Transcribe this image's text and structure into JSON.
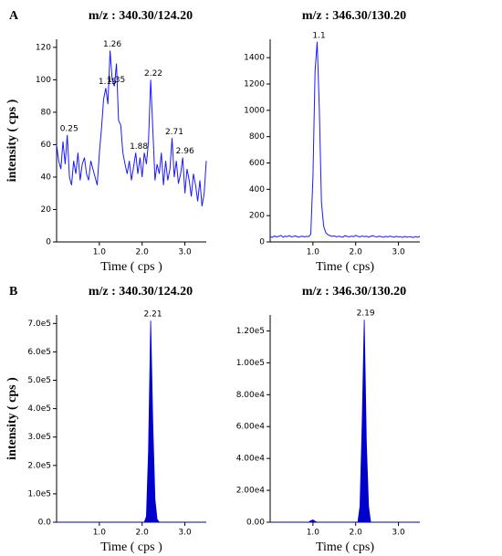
{
  "chart_data": [
    {
      "type": "line",
      "panel": "A",
      "title": "m/z : 340.30/124.20",
      "xlabel": "Time ( cps )",
      "ylabel": "intensity ( cps )",
      "color": "#1a1aff",
      "x": [
        0,
        0.05,
        0.1,
        0.15,
        0.2,
        0.25,
        0.3,
        0.35,
        0.4,
        0.45,
        0.5,
        0.55,
        0.6,
        0.65,
        0.7,
        0.75,
        0.8,
        0.85,
        0.9,
        0.95,
        1.0,
        1.05,
        1.1,
        1.15,
        1.2,
        1.25,
        1.3,
        1.35,
        1.4,
        1.45,
        1.5,
        1.55,
        1.6,
        1.65,
        1.7,
        1.75,
        1.8,
        1.85,
        1.9,
        1.95,
        2.0,
        2.05,
        2.1,
        2.15,
        2.2,
        2.25,
        2.3,
        2.35,
        2.4,
        2.45,
        2.5,
        2.55,
        2.6,
        2.65,
        2.7,
        2.75,
        2.8,
        2.85,
        2.9,
        2.95,
        3.0,
        3.05,
        3.1,
        3.15,
        3.2,
        3.25,
        3.3,
        3.35,
        3.4,
        3.45,
        3.5
      ],
      "values": [
        60,
        50,
        45,
        62,
        48,
        66,
        40,
        35,
        50,
        42,
        55,
        38,
        48,
        52,
        42,
        38,
        50,
        45,
        40,
        35,
        55,
        70,
        88,
        95,
        85,
        118,
        100,
        96,
        110,
        75,
        72,
        55,
        48,
        42,
        50,
        38,
        46,
        55,
        42,
        52,
        40,
        55,
        48,
        62,
        100,
        70,
        38,
        48,
        42,
        55,
        35,
        50,
        38,
        45,
        64,
        40,
        50,
        36,
        42,
        52,
        30,
        45,
        38,
        28,
        42,
        35,
        25,
        38,
        22,
        30,
        50
      ],
      "peaks": [
        {
          "x": 0.25,
          "y": 66
        },
        {
          "x": 1.15,
          "y": 95
        },
        {
          "x": 1.26,
          "y": 118
        },
        {
          "x": 1.35,
          "y": 96
        },
        {
          "x": 1.88,
          "y": 55
        },
        {
          "x": 2.22,
          "y": 100
        },
        {
          "x": 2.71,
          "y": 64
        },
        {
          "x": 2.96,
          "y": 52
        }
      ],
      "xlim": [
        0,
        3.5
      ],
      "xticks": [
        {
          "value": 1,
          "label": "1.0"
        },
        {
          "value": 2,
          "label": "2.0"
        },
        {
          "value": 3,
          "label": "3.0"
        }
      ],
      "ylim": [
        0,
        125
      ],
      "yticks": [
        0,
        20,
        40,
        60,
        80,
        100,
        120
      ]
    },
    {
      "type": "line",
      "title": "m/z : 346.30/130.20",
      "xlabel": "Time ( cps)",
      "color": "#1a1aff",
      "x": [
        0,
        0.05,
        0.1,
        0.15,
        0.2,
        0.25,
        0.3,
        0.35,
        0.4,
        0.45,
        0.5,
        0.55,
        0.6,
        0.65,
        0.7,
        0.75,
        0.8,
        0.85,
        0.9,
        0.95,
        1.0,
        1.05,
        1.1,
        1.15,
        1.2,
        1.25,
        1.3,
        1.35,
        1.4,
        1.45,
        1.5,
        1.55,
        1.6,
        1.65,
        1.7,
        1.75,
        1.8,
        1.85,
        1.9,
        1.95,
        2.0,
        2.05,
        2.1,
        2.15,
        2.2,
        2.25,
        2.3,
        2.35,
        2.4,
        2.45,
        2.5,
        2.55,
        2.6,
        2.65,
        2.7,
        2.75,
        2.8,
        2.85,
        2.9,
        2.95,
        3.0,
        3.05,
        3.1,
        3.15,
        3.2,
        3.25,
        3.3,
        3.35,
        3.4,
        3.45,
        3.5
      ],
      "values": [
        40,
        35,
        45,
        38,
        42,
        50,
        36,
        44,
        40,
        48,
        38,
        42,
        46,
        36,
        40,
        44,
        38,
        42,
        40,
        60,
        500,
        1300,
        1520,
        1000,
        300,
        120,
        70,
        55,
        48,
        42,
        46,
        38,
        44,
        40,
        36,
        48,
        42,
        38,
        44,
        40,
        50,
        42,
        38,
        46,
        40,
        44,
        36,
        42,
        48,
        40,
        38,
        44,
        40,
        36,
        42,
        38,
        44,
        40,
        36,
        42,
        38,
        40,
        34,
        42,
        36,
        40,
        38,
        34,
        40,
        36,
        42
      ],
      "peaks": [
        {
          "x": 1.1,
          "y": 1520
        }
      ],
      "xlim": [
        0,
        3.5
      ],
      "xticks": [
        {
          "value": 1,
          "label": "1.0"
        },
        {
          "value": 2,
          "label": "2.0"
        },
        {
          "value": 3,
          "label": "3.0"
        }
      ],
      "ylim": [
        0,
        1540
      ],
      "yticks": [
        0,
        200,
        400,
        600,
        800,
        1000,
        1200,
        1400
      ]
    },
    {
      "type": "area",
      "panel": "B",
      "title": "m/z : 340.30/124.20",
      "xlabel": "Time ( cps )",
      "ylabel": "intensity ( cps )",
      "color": "#0000cc",
      "x": [
        0,
        0.05,
        0.1,
        0.15,
        0.2,
        0.25,
        0.3,
        0.35,
        0.4,
        0.45,
        0.5,
        0.55,
        0.6,
        0.65,
        0.7,
        0.75,
        0.8,
        0.85,
        0.9,
        0.95,
        1.0,
        1.05,
        1.1,
        1.15,
        1.2,
        1.25,
        1.3,
        1.35,
        1.4,
        1.45,
        1.5,
        1.55,
        1.6,
        1.65,
        1.7,
        1.75,
        1.8,
        1.85,
        1.9,
        1.95,
        2.0,
        2.05,
        2.1,
        2.15,
        2.2,
        2.25,
        2.3,
        2.35,
        2.4,
        2.45,
        2.5,
        2.55,
        2.6,
        2.65,
        2.7,
        2.75,
        2.8,
        2.85,
        2.9,
        2.95,
        3.0,
        3.05,
        3.1,
        3.15,
        3.2,
        3.25,
        3.3,
        3.35,
        3.4,
        3.45,
        3.5
      ],
      "values": [
        0,
        0,
        0,
        0,
        0,
        0,
        0,
        0,
        0,
        0,
        0,
        0,
        0,
        0,
        0,
        0,
        0,
        0,
        0,
        0,
        0,
        0,
        0,
        0,
        0,
        0,
        0,
        0,
        0,
        0,
        0,
        0,
        0,
        0,
        0,
        0,
        0,
        0,
        0,
        0,
        0,
        0,
        20000,
        250000,
        710000,
        350000,
        80000,
        10000,
        0,
        0,
        0,
        0,
        0,
        0,
        0,
        0,
        0,
        0,
        0,
        0,
        0,
        0,
        0,
        0,
        0,
        0,
        0,
        0,
        0,
        0,
        0
      ],
      "peaks": [
        {
          "x": 2.21,
          "y": 710000
        }
      ],
      "xlim": [
        0,
        3.5
      ],
      "xticks": [
        {
          "value": 1,
          "label": "1.0"
        },
        {
          "value": 2,
          "label": "2.0"
        },
        {
          "value": 3,
          "label": "3.0"
        }
      ],
      "ylim": [
        0,
        730000
      ],
      "yticks": [
        {
          "value": 0,
          "label": "0.0"
        },
        {
          "value": 100000,
          "label": "1.0e5"
        },
        {
          "value": 200000,
          "label": "2.0e5"
        },
        {
          "value": 300000,
          "label": "3.0e5"
        },
        {
          "value": 400000,
          "label": "4.0e5"
        },
        {
          "value": 500000,
          "label": "5.0e5"
        },
        {
          "value": 600000,
          "label": "6.0e5"
        },
        {
          "value": 700000,
          "label": "7.0e5"
        }
      ]
    },
    {
      "type": "area",
      "title": "m/z : 346.30/130.20",
      "xlabel": "Time ( cps)",
      "color": "#0000cc",
      "x": [
        0,
        0.05,
        0.1,
        0.15,
        0.2,
        0.25,
        0.3,
        0.35,
        0.4,
        0.45,
        0.5,
        0.55,
        0.6,
        0.65,
        0.7,
        0.75,
        0.8,
        0.85,
        0.9,
        0.95,
        1.0,
        1.05,
        1.1,
        1.15,
        1.2,
        1.25,
        1.3,
        1.35,
        1.4,
        1.45,
        1.5,
        1.55,
        1.6,
        1.65,
        1.7,
        1.75,
        1.8,
        1.85,
        1.9,
        1.95,
        2.0,
        2.05,
        2.1,
        2.15,
        2.2,
        2.25,
        2.3,
        2.35,
        2.4,
        2.45,
        2.5,
        2.55,
        2.6,
        2.65,
        2.7,
        2.75,
        2.8,
        2.85,
        2.9,
        2.95,
        3.0,
        3.05,
        3.1,
        3.15,
        3.2,
        3.25,
        3.3,
        3.35,
        3.4,
        3.45,
        3.5
      ],
      "values": [
        0,
        0,
        0,
        0,
        0,
        0,
        0,
        0,
        0,
        0,
        0,
        0,
        0,
        0,
        0,
        0,
        0,
        0,
        0,
        1000,
        1500,
        500,
        0,
        0,
        0,
        0,
        0,
        0,
        0,
        0,
        0,
        0,
        0,
        0,
        0,
        0,
        0,
        0,
        0,
        0,
        0,
        0,
        10000,
        60000,
        127000,
        50000,
        10000,
        0,
        0,
        0,
        0,
        0,
        0,
        0,
        0,
        0,
        0,
        0,
        0,
        0,
        0,
        0,
        0,
        0,
        0,
        0,
        0,
        0,
        0,
        0,
        0
      ],
      "peaks": [
        {
          "x": 2.19,
          "y": 127000
        }
      ],
      "xlim": [
        0,
        3.5
      ],
      "xticks": [
        {
          "value": 1,
          "label": "1.0"
        },
        {
          "value": 2,
          "label": "2.0"
        },
        {
          "value": 3,
          "label": "3.0"
        }
      ],
      "ylim": [
        0,
        130000
      ],
      "yticks": [
        {
          "value": 0,
          "label": "0.00"
        },
        {
          "value": 20000,
          "label": "2.00e4"
        },
        {
          "value": 40000,
          "label": "4.00e4"
        },
        {
          "value": 60000,
          "label": "6.00e4"
        },
        {
          "value": 80000,
          "label": "8.00e4"
        },
        {
          "value": 100000,
          "label": "1.00e5"
        },
        {
          "value": 120000,
          "label": "1.20e5"
        }
      ]
    }
  ]
}
